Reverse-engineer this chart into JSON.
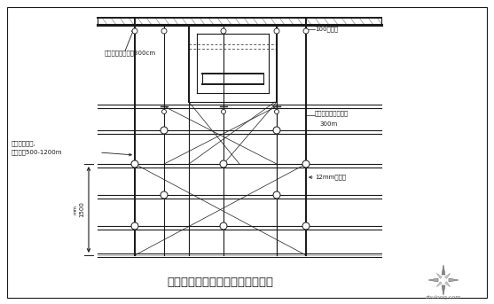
{
  "title": "有梁位置、上层梁模板安装示意图",
  "bg_color": "#ffffff",
  "line_color": "#1a1a1a",
  "title_fontsize": 9.5,
  "annotation_fontsize": 5.0,
  "label_left1": "原支撑支撑系,",
  "label_left2": "板向上至500-1200m",
  "label_top_left": "立杆底托下至板面300cm",
  "label_top_right": "100模具板",
  "label_right1": "竖立杆固定向下平下",
  "label_right2": "300m",
  "label_right3": "12mm多层板",
  "dim_label": "1500",
  "dim_label2": "mm",
  "watermark_text": "zhulong.com"
}
